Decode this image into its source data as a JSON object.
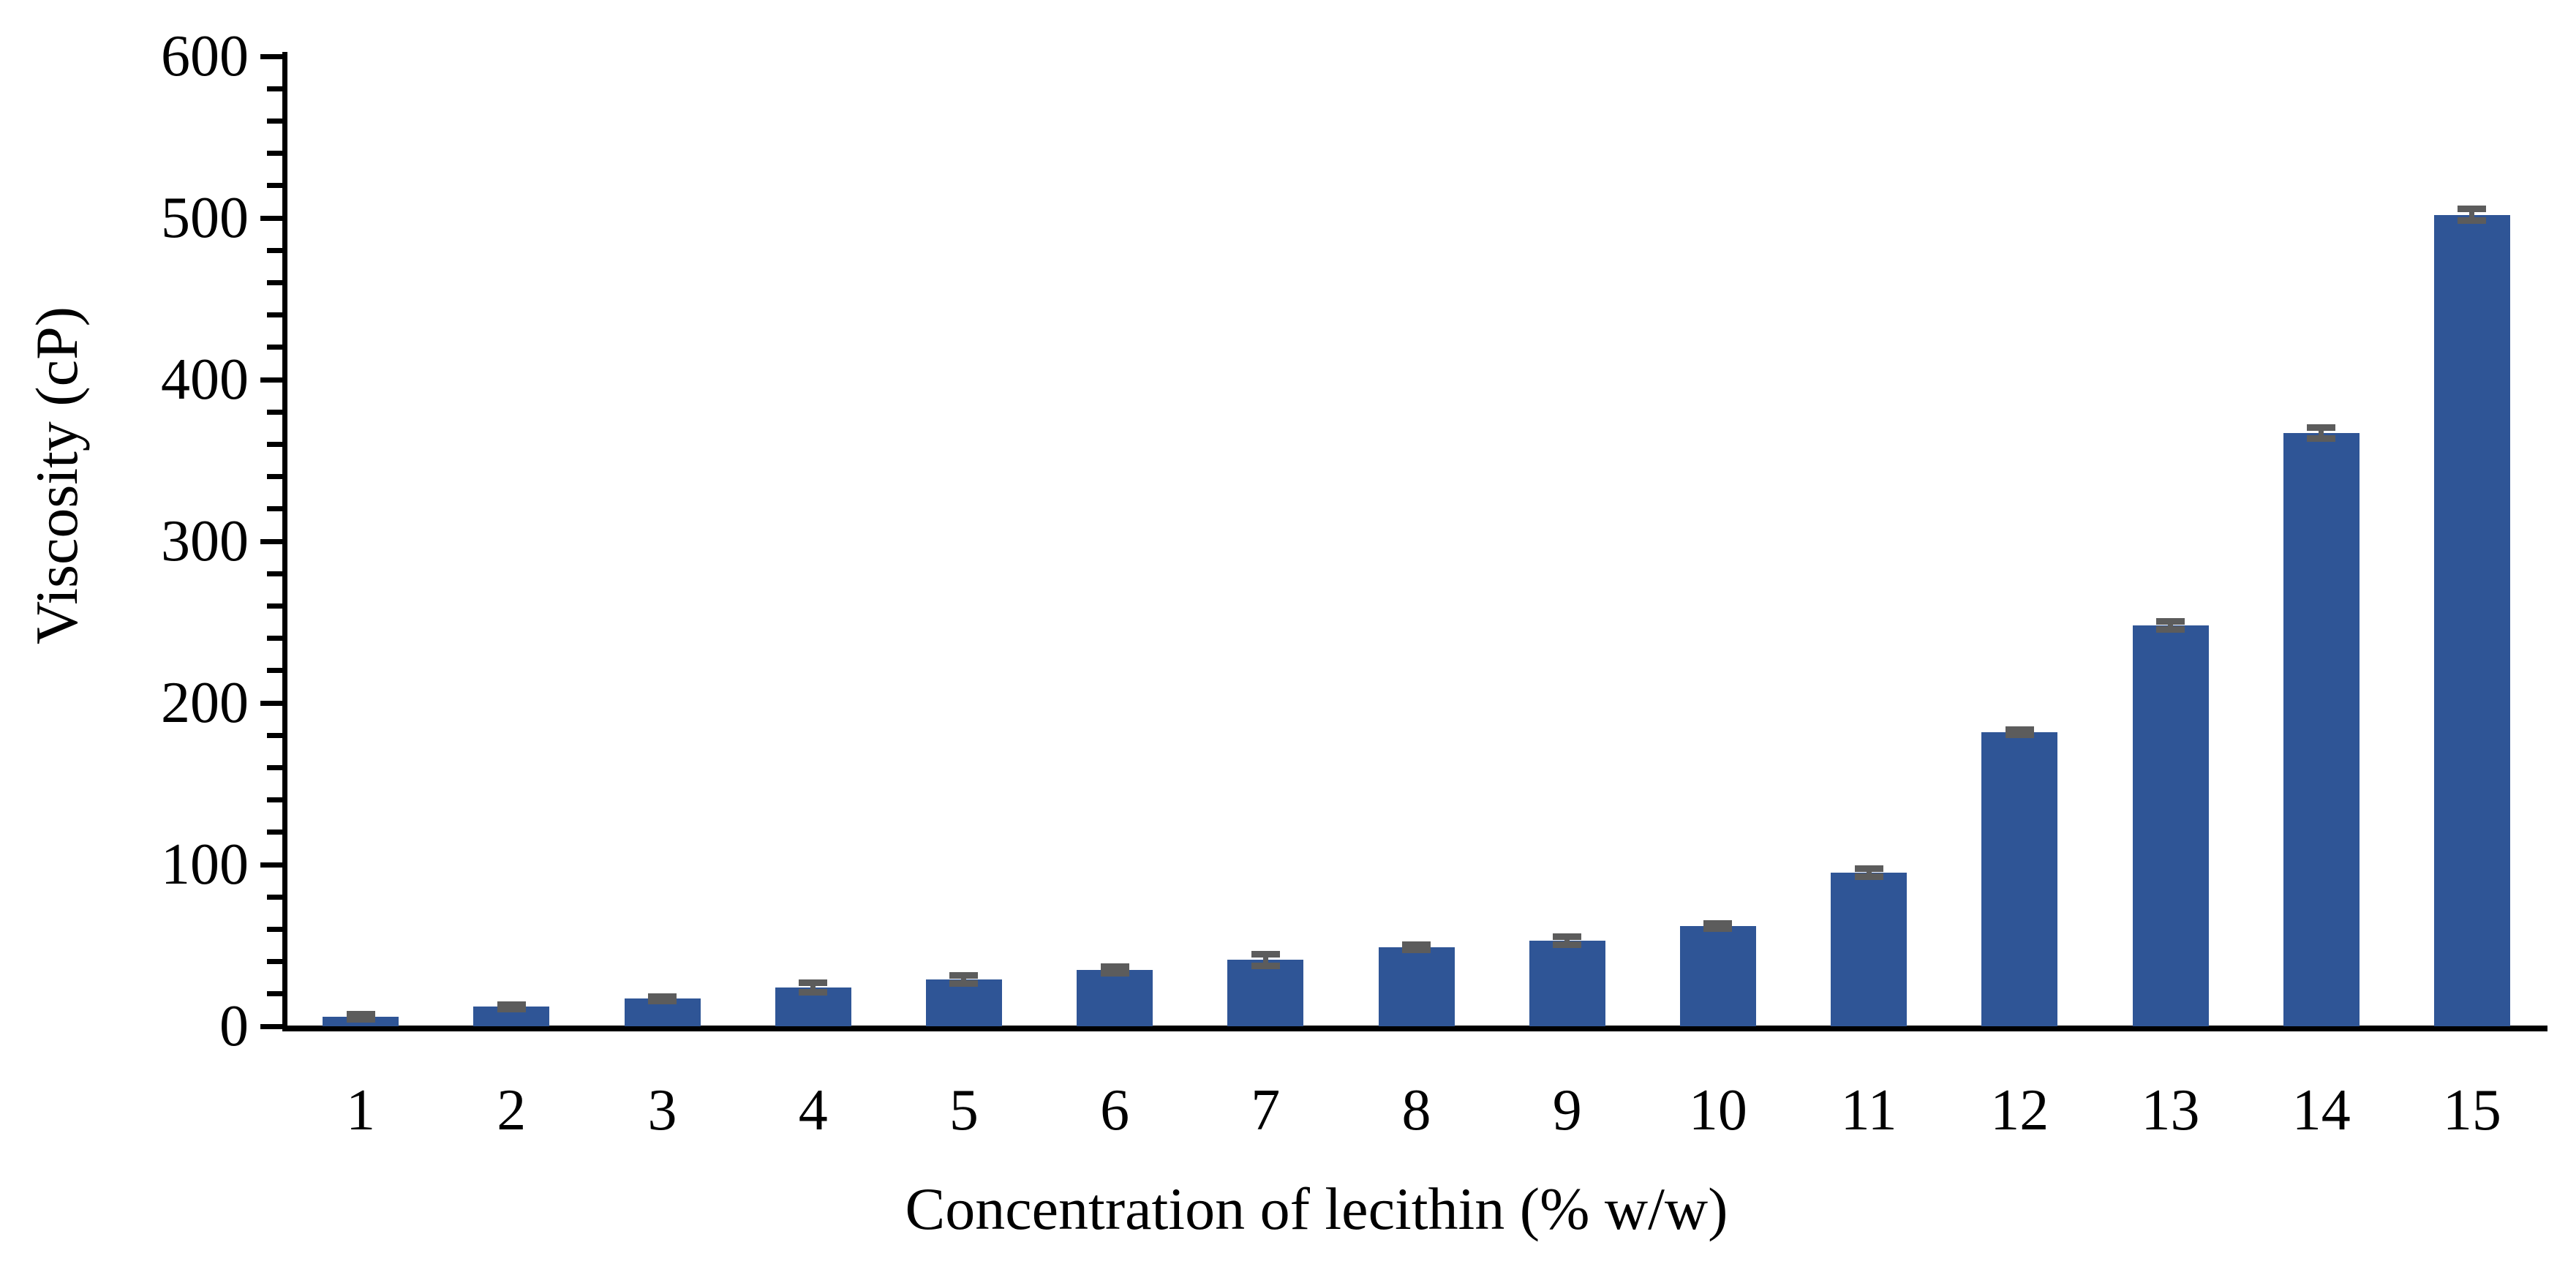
{
  "chart_data": {
    "type": "bar",
    "title": "",
    "xlabel": "Concentration of lecithin (% w/w)",
    "ylabel": "Viscosity (cP)",
    "categories": [
      "1",
      "2",
      "3",
      "4",
      "5",
      "6",
      "7",
      "8",
      "9",
      "10",
      "11",
      "12",
      "13",
      "14",
      "15"
    ],
    "series": [
      {
        "name": "Viscosity",
        "values": [
          6,
          12,
          17,
          24,
          29,
          35,
          41,
          49,
          53,
          62,
          95,
          182,
          248,
          367,
          502
        ],
        "errors": [
          1.5,
          1.5,
          1.5,
          3,
          2.5,
          2,
          3.5,
          1.5,
          2.5,
          1.5,
          2.5,
          1.5,
          2.5,
          3.5,
          3.5
        ]
      }
    ],
    "ylim": [
      0,
      600
    ],
    "ytick_step": 100,
    "yminor_step": 20,
    "ytick_labels": [
      "0",
      "100",
      "200",
      "300",
      "400",
      "500",
      "600"
    ],
    "grid": false,
    "legend": "none",
    "bar_color": "#2F5596",
    "error_color": "#5C5C5C",
    "axis_color": "#000000",
    "background_color": "#FFFFFF"
  }
}
